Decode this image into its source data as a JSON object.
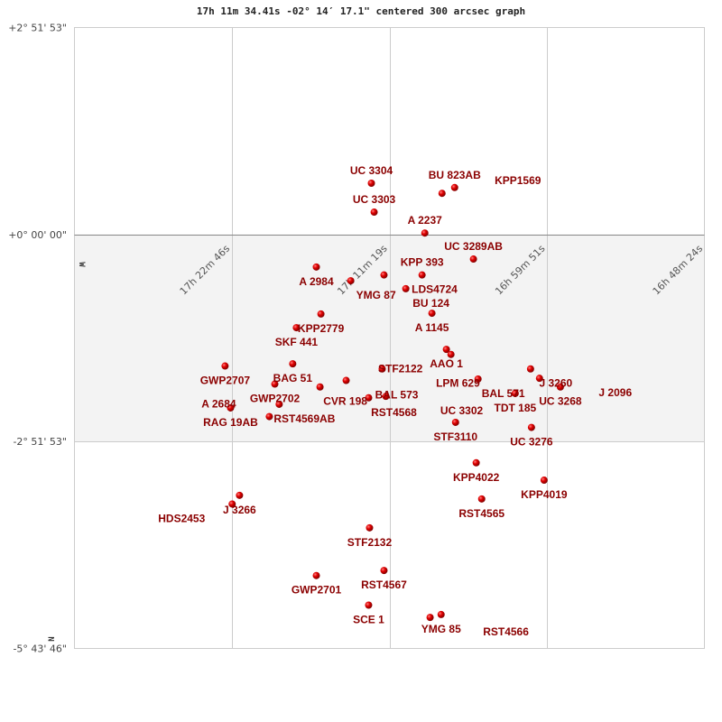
{
  "chart_data": {
    "type": "scatter",
    "title": "17h 11m 34.41s -02° 14′ 17.1\" centered 300 arcsec graph",
    "y_ticks": [
      "+2° 51' 53\"",
      "+0° 00' 00\"",
      "-2° 51' 53\"",
      "-5° 43' 46\""
    ],
    "y_tick_values": [
      2.8647,
      0,
      -2.8647,
      -5.7294
    ],
    "x_ticks": [
      "17h 22m 46s",
      "17h 11m 19s",
      "16h 59m 51s",
      "16h 48m 24s"
    ],
    "x_tick_values": [
      "17:22:46",
      "17:11:19",
      "16:59:51",
      "16:48:24"
    ],
    "direction_markers": [
      "W",
      "N"
    ],
    "shaded_band_dec": [
      0,
      -2.8647
    ],
    "marker_color": "#dd0000",
    "label_color": "#8b0000",
    "grid": true,
    "points": [
      {
        "name": "UC 3304",
        "ra": "17:12:38",
        "dec": 0.71,
        "label": "above"
      },
      {
        "name": "UC 3303",
        "ra": "17:12:26",
        "dec": 0.31,
        "label": "above"
      },
      {
        "name": "BU  823AB",
        "ra": "17:06:35",
        "dec": 0.65,
        "label": "above"
      },
      {
        "name": "KPP1569",
        "ra": "17:07:30",
        "dec": 0.57,
        "label": "above"
      },
      {
        "name": "A  2237",
        "ra": "17:08:45",
        "dec": 0.02,
        "label": "above"
      },
      {
        "name": "A  2984",
        "ra": "17:16:38",
        "dec": -0.45,
        "label": "below"
      },
      {
        "name": "YMG  87",
        "ra": "17:14:08",
        "dec": -0.64,
        "label": "below"
      },
      {
        "name": "LDS4724",
        "ra": "17:11:43",
        "dec": -0.56,
        "label": "below"
      },
      {
        "name": "KPP 393",
        "ra": "17:08:57",
        "dec": -0.56,
        "label": "below"
      },
      {
        "name": "UC 3289AB",
        "ra": "17:05:13",
        "dec": -0.34,
        "label": "below"
      },
      {
        "name": "BU  124",
        "ra": "17:10:08",
        "dec": -0.75,
        "label": "below"
      },
      {
        "name": "A  1145",
        "ra": "17:08:14",
        "dec": -1.09,
        "label": "below"
      },
      {
        "name": "KPP2779",
        "ra": "17:16:18",
        "dec": -1.1,
        "label": "below"
      },
      {
        "name": "SKF 441",
        "ra": "17:18:05",
        "dec": -1.29,
        "label": "below"
      },
      {
        "name": "GWP2707",
        "ra": "17:23:16",
        "dec": -1.82,
        "label": "below"
      },
      {
        "name": "BAG  51",
        "ra": "17:18:21",
        "dec": -1.79,
        "label": "below"
      },
      {
        "name": "GWP2702",
        "ra": "17:19:39",
        "dec": -2.07,
        "label": "below"
      },
      {
        "name": "CVR 198",
        "ra": "17:16:22",
        "dec": -2.11,
        "label": "below"
      },
      {
        "name": "BAL 573",
        "ra": "17:14:28",
        "dec": -2.02,
        "label": "below"
      },
      {
        "name": "LPM 629",
        "ra": "17:11:51",
        "dec": -1.86,
        "label": "below"
      },
      {
        "name": "RST4568",
        "ra": "17:12:50",
        "dec": -2.26,
        "label": "below"
      },
      {
        "name": "UC 3302",
        "ra": "17:11:35",
        "dec": -2.24,
        "label": "below"
      },
      {
        "name": "RAG  19AB",
        "ra": "17:22:52",
        "dec": -2.4,
        "label": "below"
      },
      {
        "name": "RST4569AB",
        "ra": "17:19:20",
        "dec": -2.35,
        "label": "below"
      },
      {
        "name": "A  2684",
        "ra": "17:20:03",
        "dec": -2.52,
        "label": "below"
      },
      {
        "name": "AAO   1",
        "ra": "17:07:11",
        "dec": -1.59,
        "label": "below"
      },
      {
        "name": "STF2122",
        "ra": "17:06:51",
        "dec": -1.66,
        "label": "below"
      },
      {
        "name": "BAL 571",
        "ra": "17:04:53",
        "dec": -2.0,
        "label": "below"
      },
      {
        "name": "J  3260",
        "ra": "17:01:04",
        "dec": -1.86,
        "label": "below"
      },
      {
        "name": "J  2096",
        "ra": "17:00:25",
        "dec": -1.99,
        "label": "below"
      },
      {
        "name": "TDT 185",
        "ra": "17:02:11",
        "dec": -2.2,
        "label": "below"
      },
      {
        "name": "UC 3268",
        "ra": "16:58:54",
        "dec": -2.11,
        "label": "below"
      },
      {
        "name": "STF3110",
        "ra": "17:06:31",
        "dec": -2.6,
        "label": "below"
      },
      {
        "name": "UC 3276",
        "ra": "17:01:00",
        "dec": -2.67,
        "label": "below"
      },
      {
        "name": "KPP4022",
        "ra": "17:05:01",
        "dec": -3.16,
        "label": "below"
      },
      {
        "name": "KPP4019",
        "ra": "17:00:05",
        "dec": -3.4,
        "label": "below"
      },
      {
        "name": "RST4565",
        "ra": "17:04:37",
        "dec": -3.66,
        "label": "below"
      },
      {
        "name": "J  3266",
        "ra": "17:22:13",
        "dec": -3.61,
        "label": "below"
      },
      {
        "name": "HDS2453",
        "ra": "17:22:45",
        "dec": -3.73,
        "label": "below"
      },
      {
        "name": "STF2132",
        "ra": "17:12:46",
        "dec": -4.06,
        "label": "below"
      },
      {
        "name": "GWP2701",
        "ra": "17:16:38",
        "dec": -4.72,
        "label": "below"
      },
      {
        "name": "RST4567",
        "ra": "17:11:43",
        "dec": -4.65,
        "label": "below"
      },
      {
        "name": "SCE   1",
        "ra": "17:12:50",
        "dec": -5.13,
        "label": "below"
      },
      {
        "name": "YMG  85",
        "ra": "17:07:34",
        "dec": -5.26,
        "label": "below"
      },
      {
        "name": "RST4566",
        "ra": "17:08:22",
        "dec": -5.3,
        "label": "below"
      }
    ]
  }
}
